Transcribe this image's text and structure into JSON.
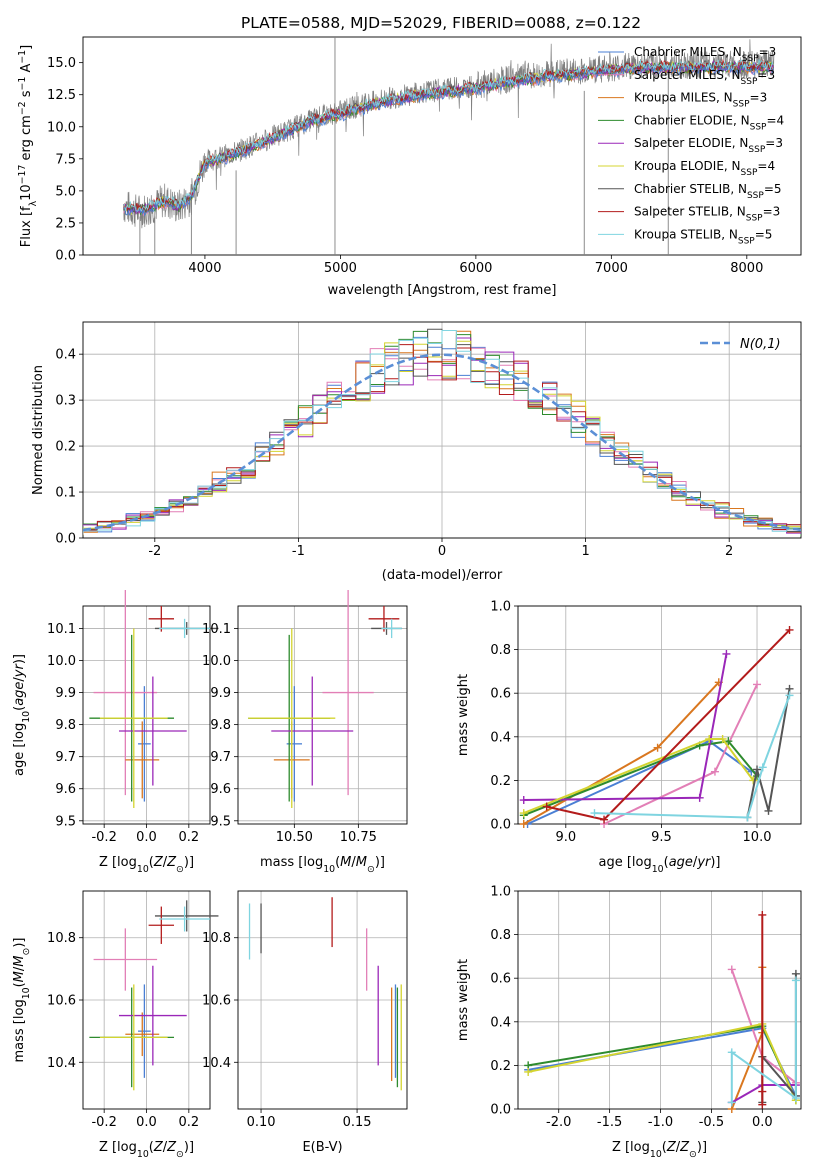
{
  "figure": {
    "title": "PLATE=0588, MJD=52029, FIBERID=0088, z=0.122"
  },
  "colors": [
    "#4a7fd4",
    "#e27fb6",
    "#d9771f",
    "#2e8b2e",
    "#9a27b8",
    "#d4d430",
    "#555555",
    "#b31b1b",
    "#7fd4e0"
  ],
  "models": [
    {
      "label": "Chabrier MILES, N_SSP=3",
      "base": "Chabrier MILES, N",
      "sub": "SSP",
      "eq": "=3"
    },
    {
      "label": "Salpeter MILES, N_SSP=3",
      "base": "Salpeter MILES, N",
      "sub": "SSP",
      "eq": "=3"
    },
    {
      "label": "Kroupa MILES, N_SSP=3",
      "base": "Kroupa MILES, N",
      "sub": "SSP",
      "eq": "=3"
    },
    {
      "label": "Chabrier ELODIE, N_SSP=4",
      "base": "Chabrier ELODIE, N",
      "sub": "SSP",
      "eq": "=4"
    },
    {
      "label": "Salpeter ELODIE, N_SSP=3",
      "base": "Salpeter ELODIE, N",
      "sub": "SSP",
      "eq": "=3"
    },
    {
      "label": "Kroupa ELODIE, N_SSP=4",
      "base": "Kroupa ELODIE, N",
      "sub": "SSP",
      "eq": "=4"
    },
    {
      "label": "Chabrier STELIB, N_SSP=5",
      "base": "Chabrier STELIB, N",
      "sub": "SSP",
      "eq": "=5"
    },
    {
      "label": "Salpeter STELIB, N_SSP=3",
      "base": "Salpeter STELIB, N",
      "sub": "SSP",
      "eq": "=3"
    },
    {
      "label": "Kroupa STELIB, N_SSP=5",
      "base": "Kroupa STELIB, N",
      "sub": "SSP",
      "eq": "=5"
    }
  ],
  "chart_data": [
    {
      "id": "spectrum",
      "type": "line",
      "xlabel": "wavelength [Angstrom, rest frame]",
      "ylabel": "Flux [f_λ 10^-17 erg cm^-2 s^-1 A^-1]",
      "xlim": [
        3100,
        8400
      ],
      "ylim": [
        0,
        17
      ],
      "xticks": [
        4000,
        5000,
        6000,
        7000,
        8000
      ],
      "yticks": [
        0.0,
        2.5,
        5.0,
        7.5,
        10.0,
        12.5,
        15.0
      ],
      "legend": "top-right",
      "observed": {
        "x": [
          3400,
          3500,
          3600,
          3700,
          3800,
          3900,
          4000,
          4200,
          4500,
          4800,
          5000,
          5300,
          5600,
          6000,
          6300,
          6600,
          7000,
          7200,
          7500,
          7800,
          8000,
          8200
        ],
        "y": [
          3.8,
          3.4,
          3.6,
          4.3,
          3.7,
          4.5,
          7.3,
          7.9,
          9.2,
          10.6,
          11.2,
          12.1,
          12.7,
          13.2,
          13.8,
          14.2,
          14.6,
          14.8,
          14.8,
          14.9,
          14.8,
          14.9
        ]
      },
      "models": {
        "x": [
          3400,
          3500,
          3600,
          3700,
          3800,
          3900,
          4000,
          4200,
          4500,
          4800,
          5000,
          5300,
          5600,
          6000,
          6300,
          6600,
          7000,
          7200,
          7500,
          7800,
          8000,
          8200
        ],
        "y": [
          3.7,
          3.5,
          3.7,
          4.2,
          3.8,
          4.6,
          7.2,
          7.8,
          9.1,
          10.5,
          11.0,
          11.9,
          12.5,
          13.0,
          13.6,
          14.0,
          14.4,
          14.6,
          14.6,
          14.7,
          14.6,
          14.7
        ]
      }
    },
    {
      "id": "residuals",
      "type": "histogram",
      "xlabel": "(data-model)/error",
      "ylabel": "Normed distribution",
      "xlim": [
        -2.5,
        2.5
      ],
      "ylim": [
        0,
        0.47
      ],
      "xticks": [
        -2,
        -1,
        0,
        1,
        2
      ],
      "yticks": [
        0.0,
        0.1,
        0.2,
        0.3,
        0.4
      ],
      "reference": "N(0,1)",
      "legend": "top-right"
    },
    {
      "id": "age-vs-Z",
      "type": "errorbar",
      "xlabel": "Z [log10(Z/Z_sun)]",
      "ylabel": "age [log10(age/yr)]",
      "xlim": [
        -0.3,
        0.3
      ],
      "ylim": [
        9.49,
        10.17
      ],
      "xticks": [
        -0.2,
        0.0,
        0.2
      ],
      "yticks": [
        9.5,
        9.6,
        9.7,
        9.8,
        9.9,
        10.0,
        10.1
      ],
      "points": [
        {
          "model": 0,
          "x": -0.01,
          "y": 9.74,
          "xerr": 0.03,
          "yerr": 0.18
        },
        {
          "model": 1,
          "x": -0.1,
          "y": 9.9,
          "xerr": 0.15,
          "yerr": 0.32
        },
        {
          "model": 2,
          "x": -0.02,
          "y": 9.69,
          "xerr": 0.08,
          "yerr": 0.12
        },
        {
          "model": 3,
          "x": -0.07,
          "y": 9.82,
          "xerr": 0.2,
          "yerr": 0.26
        },
        {
          "model": 4,
          "x": 0.03,
          "y": 9.78,
          "xerr": 0.16,
          "yerr": 0.17
        },
        {
          "model": 5,
          "x": -0.06,
          "y": 9.82,
          "xerr": 0.16,
          "yerr": 0.28
        },
        {
          "model": 6,
          "x": 0.19,
          "y": 10.1,
          "xerr": 0.15,
          "yerr": 0.02
        },
        {
          "model": 7,
          "x": 0.07,
          "y": 10.13,
          "xerr": 0.06,
          "yerr": 0.04
        },
        {
          "model": 8,
          "x": 0.18,
          "y": 10.1,
          "xerr": 0.12,
          "yerr": 0.03
        }
      ]
    },
    {
      "id": "age-vs-mass",
      "type": "errorbar",
      "xlabel": "mass [log10(M/M_sun)]",
      "xlim": [
        10.28,
        10.94
      ],
      "ylim": [
        9.49,
        10.17
      ],
      "xticks": [
        10.5,
        10.75
      ],
      "yticks": [
        9.5,
        9.6,
        9.7,
        9.8,
        9.9,
        10.0,
        10.1
      ],
      "points": [
        {
          "model": 0,
          "x": 10.5,
          "y": 9.74,
          "xerr": 0.03,
          "yerr": 0.18
        },
        {
          "model": 1,
          "x": 10.71,
          "y": 9.9,
          "xerr": 0.1,
          "yerr": 0.32
        },
        {
          "model": 2,
          "x": 10.49,
          "y": 9.69,
          "xerr": 0.07,
          "yerr": 0.12
        },
        {
          "model": 3,
          "x": 10.48,
          "y": 9.82,
          "xerr": 0.16,
          "yerr": 0.26
        },
        {
          "model": 4,
          "x": 10.57,
          "y": 9.78,
          "xerr": 0.16,
          "yerr": 0.17
        },
        {
          "model": 5,
          "x": 10.49,
          "y": 9.82,
          "xerr": 0.17,
          "yerr": 0.28
        },
        {
          "model": 6,
          "x": 10.86,
          "y": 10.1,
          "xerr": 0.06,
          "yerr": 0.02
        },
        {
          "model": 7,
          "x": 10.85,
          "y": 10.13,
          "xerr": 0.06,
          "yerr": 0.04
        },
        {
          "model": 8,
          "x": 10.88,
          "y": 10.1,
          "xerr": 0.04,
          "yerr": 0.03
        }
      ]
    },
    {
      "id": "weight-vs-age",
      "type": "line",
      "xlabel": "age [log10(age/yr)]",
      "ylabel": "mass weight",
      "xlim": [
        8.75,
        10.23
      ],
      "ylim": [
        0,
        1
      ],
      "xticks": [
        9.0,
        9.5,
        10.0
      ],
      "yticks": [
        0.0,
        0.2,
        0.4,
        0.6,
        0.8,
        1.0
      ],
      "series": [
        {
          "model": 0,
          "x": [
            8.8,
            9.75,
            9.97
          ],
          "y": [
            0.0,
            0.38,
            0.24
          ]
        },
        {
          "model": 1,
          "x": [
            9.2,
            9.78,
            10.0
          ],
          "y": [
            0.0,
            0.24,
            0.64
          ]
        },
        {
          "model": 2,
          "x": [
            8.78,
            9.48,
            9.8
          ],
          "y": [
            0.0,
            0.35,
            0.65
          ]
        },
        {
          "model": 3,
          "x": [
            8.78,
            9.7,
            9.85,
            10.0
          ],
          "y": [
            0.04,
            0.36,
            0.38,
            0.22
          ]
        },
        {
          "model": 4,
          "x": [
            8.78,
            9.7,
            9.84
          ],
          "y": [
            0.11,
            0.12,
            0.78
          ]
        },
        {
          "model": 5,
          "x": [
            8.78,
            9.75,
            9.82,
            9.98
          ],
          "y": [
            0.05,
            0.39,
            0.39,
            0.2
          ]
        },
        {
          "model": 6,
          "x": [
            9.95,
            10.0,
            10.06,
            10.17
          ],
          "y": [
            0.03,
            0.25,
            0.06,
            0.62
          ]
        },
        {
          "model": 7,
          "x": [
            8.9,
            9.2,
            10.17
          ],
          "y": [
            0.08,
            0.02,
            0.89
          ]
        },
        {
          "model": 8,
          "x": [
            9.15,
            9.95,
            10.03,
            10.17
          ],
          "y": [
            0.05,
            0.03,
            0.26,
            0.59
          ]
        }
      ]
    },
    {
      "id": "mass-vs-Z",
      "type": "errorbar",
      "xlabel": "Z [log10(Z/Z_sun)]",
      "ylabel": "mass [log10(M/M_sun)]",
      "xlim": [
        -0.3,
        0.3
      ],
      "ylim": [
        10.25,
        10.95
      ],
      "xticks": [
        -0.2,
        0.0,
        0.2
      ],
      "yticks": [
        10.4,
        10.6,
        10.8
      ],
      "points": [
        {
          "model": 0,
          "x": -0.01,
          "y": 10.5,
          "xerr": 0.03,
          "yerr": 0.15
        },
        {
          "model": 1,
          "x": -0.1,
          "y": 10.73,
          "xerr": 0.15,
          "yerr": 0.1
        },
        {
          "model": 2,
          "x": -0.02,
          "y": 10.49,
          "xerr": 0.08,
          "yerr": 0.07
        },
        {
          "model": 3,
          "x": -0.07,
          "y": 10.48,
          "xerr": 0.2,
          "yerr": 0.16
        },
        {
          "model": 4,
          "x": 0.03,
          "y": 10.55,
          "xerr": 0.16,
          "yerr": 0.16
        },
        {
          "model": 5,
          "x": -0.06,
          "y": 10.48,
          "xerr": 0.16,
          "yerr": 0.17
        },
        {
          "model": 6,
          "x": 0.19,
          "y": 10.87,
          "xerr": 0.15,
          "yerr": 0.05
        },
        {
          "model": 7,
          "x": 0.07,
          "y": 10.84,
          "xerr": 0.06,
          "yerr": 0.06
        },
        {
          "model": 8,
          "x": 0.18,
          "y": 10.86,
          "xerr": 0.12,
          "yerr": 0.04
        }
      ]
    },
    {
      "id": "mass-vs-ebv",
      "type": "errorbar",
      "xlabel": "E(B-V)",
      "xlim": [
        0.088,
        0.176
      ],
      "ylim": [
        10.25,
        10.95
      ],
      "xticks": [
        0.1,
        0.15
      ],
      "yticks": [
        10.4,
        10.6,
        10.8
      ],
      "points": [
        {
          "model": 0,
          "x": 0.17,
          "y": 10.5,
          "xerr": 0,
          "yerr": 0.15
        },
        {
          "model": 1,
          "x": 0.155,
          "y": 10.73,
          "xerr": 0,
          "yerr": 0.1
        },
        {
          "model": 2,
          "x": 0.168,
          "y": 10.49,
          "xerr": 0,
          "yerr": 0.15
        },
        {
          "model": 3,
          "x": 0.171,
          "y": 10.48,
          "xerr": 0,
          "yerr": 0.16
        },
        {
          "model": 4,
          "x": 0.161,
          "y": 10.55,
          "xerr": 0,
          "yerr": 0.16
        },
        {
          "model": 5,
          "x": 0.173,
          "y": 10.48,
          "xerr": 0,
          "yerr": 0.17
        },
        {
          "model": 6,
          "x": 0.1,
          "y": 10.83,
          "xerr": 0,
          "yerr": 0.08
        },
        {
          "model": 7,
          "x": 0.137,
          "y": 10.85,
          "xerr": 0,
          "yerr": 0.08
        },
        {
          "model": 8,
          "x": 0.094,
          "y": 10.82,
          "xerr": 0,
          "yerr": 0.09
        }
      ]
    },
    {
      "id": "weight-vs-Z",
      "type": "line",
      "xlabel": "Z [log10(Z/Z_sun)]",
      "ylabel": "mass weight",
      "xlim": [
        -2.4,
        0.38
      ],
      "ylim": [
        0,
        1
      ],
      "xticks": [
        -2.0,
        -1.5,
        -1.0,
        -0.5,
        0.0
      ],
      "yticks": [
        0.0,
        0.2,
        0.4,
        0.6,
        0.8,
        1.0
      ],
      "series": [
        {
          "model": 0,
          "x": [
            -2.3,
            0.0,
            0.33
          ],
          "y": [
            0.18,
            0.37,
            0.06
          ]
        },
        {
          "model": 1,
          "x": [
            -0.3,
            0.0,
            0.33
          ],
          "y": [
            0.64,
            0.24,
            0.12
          ]
        },
        {
          "model": 2,
          "x": [
            -0.3,
            0.0,
            0.0
          ],
          "y": [
            0.0,
            0.35,
            0.65
          ]
        },
        {
          "model": 3,
          "x": [
            -2.3,
            0.0,
            0.33
          ],
          "y": [
            0.2,
            0.38,
            0.04
          ]
        },
        {
          "model": 4,
          "x": [
            -0.3,
            0.0,
            0.33
          ],
          "y": [
            0.03,
            0.11,
            0.11
          ]
        },
        {
          "model": 5,
          "x": [
            -2.3,
            0.0,
            0.33
          ],
          "y": [
            0.17,
            0.39,
            0.04
          ]
        },
        {
          "model": 6,
          "x": [
            0.0,
            0.0,
            0.33,
            0.33
          ],
          "y": [
            0.03,
            0.24,
            0.06,
            0.62
          ]
        },
        {
          "model": 7,
          "x": [
            0.0,
            0.0,
            0.0
          ],
          "y": [
            0.02,
            0.08,
            0.89
          ]
        },
        {
          "model": 8,
          "x": [
            -0.3,
            -0.3,
            0.33,
            0.33
          ],
          "y": [
            0.03,
            0.26,
            0.05,
            0.59
          ]
        }
      ]
    }
  ]
}
